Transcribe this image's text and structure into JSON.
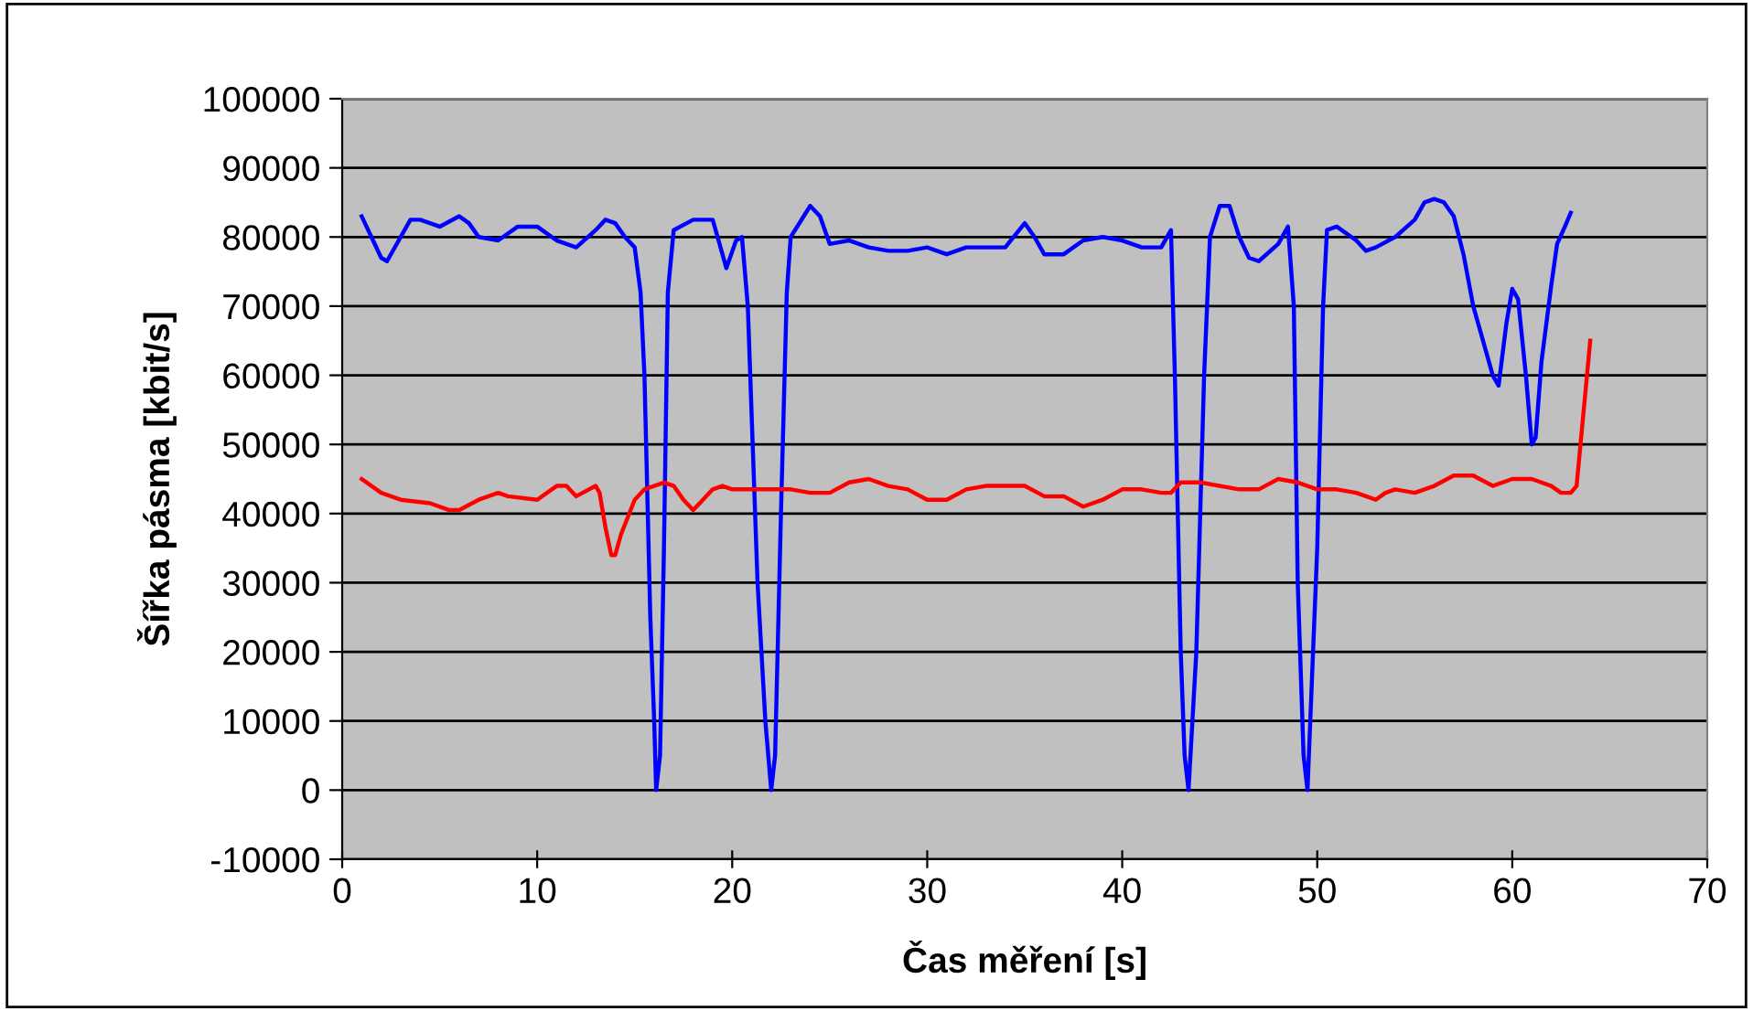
{
  "chart_data": {
    "type": "line",
    "xlabel": "Čas měření [s]",
    "ylabel": "Šířka pásma [kbit/s]",
    "xlim": [
      0,
      70
    ],
    "xticks": [
      0,
      10,
      20,
      30,
      40,
      50,
      60,
      70
    ],
    "ylim": [
      -10000,
      100000
    ],
    "yticks": [
      -10000,
      0,
      10000,
      20000,
      30000,
      40000,
      50000,
      60000,
      70000,
      80000,
      90000,
      100000
    ],
    "grid": "y",
    "marker": "none",
    "line_style": "solid",
    "series": [
      {
        "color": "#0000ff",
        "x": [
          1,
          1.5,
          2,
          2.3,
          3,
          3.5,
          4,
          5,
          6,
          6.5,
          7,
          8,
          8.5,
          9,
          10,
          11,
          12,
          13,
          13.5,
          14,
          14.5,
          15,
          15.3,
          15.5,
          15.8,
          16,
          16.1,
          16.3,
          16.5,
          16.7,
          17,
          18,
          19,
          19.5,
          19.7,
          20.2,
          20.5,
          20.8,
          21.3,
          21.7,
          22,
          22.2,
          22.5,
          22.8,
          23,
          24,
          24.5,
          25,
          26,
          27,
          28,
          29,
          30,
          31,
          32,
          34,
          35,
          35.5,
          36,
          37,
          38,
          39,
          40,
          41,
          42,
          42.5,
          42.7,
          43,
          43.2,
          43.4,
          43.8,
          44.2,
          44.5,
          45,
          45.5,
          46,
          46.5,
          47,
          48,
          48.5,
          48.8,
          49,
          49.3,
          49.5,
          50,
          50.3,
          50.5,
          51,
          52,
          52.5,
          53,
          54,
          55,
          55.5,
          56,
          56.5,
          57,
          57.5,
          58,
          58.5,
          59,
          59.3,
          59.7,
          60,
          60.3,
          60.7,
          61,
          61.2,
          61.5,
          62,
          62.3,
          62.7,
          63
        ],
        "values": [
          83000,
          80000,
          77000,
          76500,
          80000,
          82500,
          82500,
          81500,
          83000,
          82000,
          80000,
          79500,
          80500,
          81500,
          81500,
          79500,
          78500,
          81000,
          82500,
          82000,
          80000,
          78500,
          72000,
          60000,
          25000,
          10000,
          0,
          5000,
          35000,
          72000,
          81000,
          82500,
          82500,
          77500,
          75500,
          79500,
          80000,
          70000,
          30000,
          10000,
          0,
          5000,
          40000,
          72000,
          80000,
          84500,
          83000,
          79000,
          79500,
          78500,
          78000,
          78000,
          78500,
          77500,
          78500,
          78500,
          82000,
          80000,
          77500,
          77500,
          79500,
          80000,
          79500,
          78500,
          78500,
          81000,
          60000,
          20000,
          5000,
          0,
          20000,
          60000,
          80000,
          84500,
          84500,
          80000,
          77000,
          76500,
          79000,
          81500,
          70000,
          30000,
          5000,
          0,
          35000,
          70000,
          81000,
          81500,
          79500,
          78000,
          78500,
          80000,
          82500,
          85000,
          85500,
          85000,
          83000,
          77500,
          70000,
          65000,
          60000,
          58500,
          67500,
          72500,
          71000,
          60000,
          50000,
          51000,
          62000,
          73000,
          79000,
          81500,
          83500
        ]
      },
      {
        "color": "#ff0000",
        "x": [
          1,
          2,
          3,
          4.5,
          5.5,
          6,
          7,
          8,
          8.5,
          10,
          11,
          11.5,
          12,
          13,
          13.2,
          13.5,
          13.8,
          14,
          14.3,
          15,
          15.5,
          16.5,
          17,
          17.5,
          18,
          19,
          19.5,
          20,
          22,
          23,
          24,
          25,
          26,
          27,
          28,
          29,
          30,
          31,
          32,
          33,
          35,
          36,
          37,
          38,
          39,
          40,
          41,
          42,
          42.5,
          43,
          44,
          46,
          47,
          48,
          49,
          50,
          51,
          52,
          53,
          53.5,
          54,
          55,
          56,
          57,
          58,
          59,
          60,
          61,
          62,
          62.5,
          63,
          63.3,
          63.5,
          64
        ],
        "values": [
          45000,
          43000,
          42000,
          41500,
          40500,
          40500,
          42000,
          43000,
          42500,
          42000,
          44000,
          44000,
          42500,
          44000,
          43000,
          38000,
          34000,
          34000,
          37000,
          42000,
          43500,
          44500,
          44000,
          42000,
          40500,
          43500,
          44000,
          43500,
          43500,
          43500,
          43000,
          43000,
          44500,
          45000,
          44000,
          43500,
          42000,
          42000,
          43500,
          44000,
          44000,
          42500,
          42500,
          41000,
          42000,
          43500,
          43500,
          43000,
          43000,
          44500,
          44500,
          43500,
          43500,
          45000,
          44500,
          43500,
          43500,
          43000,
          42000,
          43000,
          43500,
          43000,
          44000,
          45500,
          45500,
          44000,
          45000,
          45000,
          44000,
          43000,
          43000,
          44000,
          50000,
          65000
        ]
      }
    ]
  }
}
